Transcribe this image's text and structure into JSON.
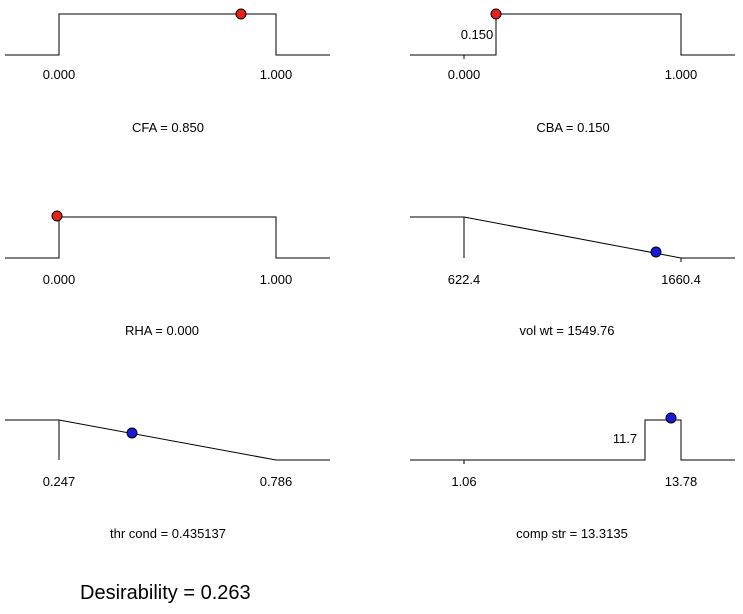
{
  "colors": {
    "constraint_point": "#e8211b",
    "response_point": "#1a1adf",
    "line": "#000000"
  },
  "chart_data": [
    {
      "type": "desirability-ramp",
      "kind": "factor-range",
      "lower": 0.0,
      "upper": 1.0,
      "lower_label": "0.000",
      "upper_label": "1.000",
      "value": 0.85,
      "point_color": "red",
      "caption": "CFA = 0.850"
    },
    {
      "type": "desirability-ramp",
      "kind": "factor-range",
      "lower": 0.0,
      "upper": 1.0,
      "lower_label": "0.000",
      "upper_label": "1.000",
      "step_at": 0.15,
      "step_label": "0.150",
      "value": 0.15,
      "point_color": "red",
      "caption": "CBA = 0.150"
    },
    {
      "type": "desirability-ramp",
      "kind": "factor-range",
      "lower": 0.0,
      "upper": 1.0,
      "lower_label": "0.000",
      "upper_label": "1.000",
      "value": 0.0,
      "point_color": "red",
      "caption": "RHA = 0.000"
    },
    {
      "type": "desirability-ramp",
      "kind": "minimize",
      "lower": 622.4,
      "upper": 1660.4,
      "lower_label": "622.4",
      "upper_label": "1660.4",
      "value": 1549.76,
      "point_color": "blue",
      "caption": "vol wt = 1549.76"
    },
    {
      "type": "desirability-ramp",
      "kind": "minimize",
      "lower": 0.247,
      "upper": 0.786,
      "lower_label": "0.247",
      "upper_label": "0.786",
      "value": 0.435137,
      "point_color": "blue",
      "caption": "thr cond = 0.435137"
    },
    {
      "type": "desirability-ramp",
      "kind": "maximize-window",
      "lower": 1.06,
      "upper": 13.78,
      "lower_label": "1.06",
      "upper_label": "13.78",
      "target_low": 11.7,
      "target_low_label": "11.7",
      "value": 13.3135,
      "point_color": "blue",
      "caption": "comp str = 13.3135"
    }
  ],
  "desirability_text": "Desirability = 0.263"
}
